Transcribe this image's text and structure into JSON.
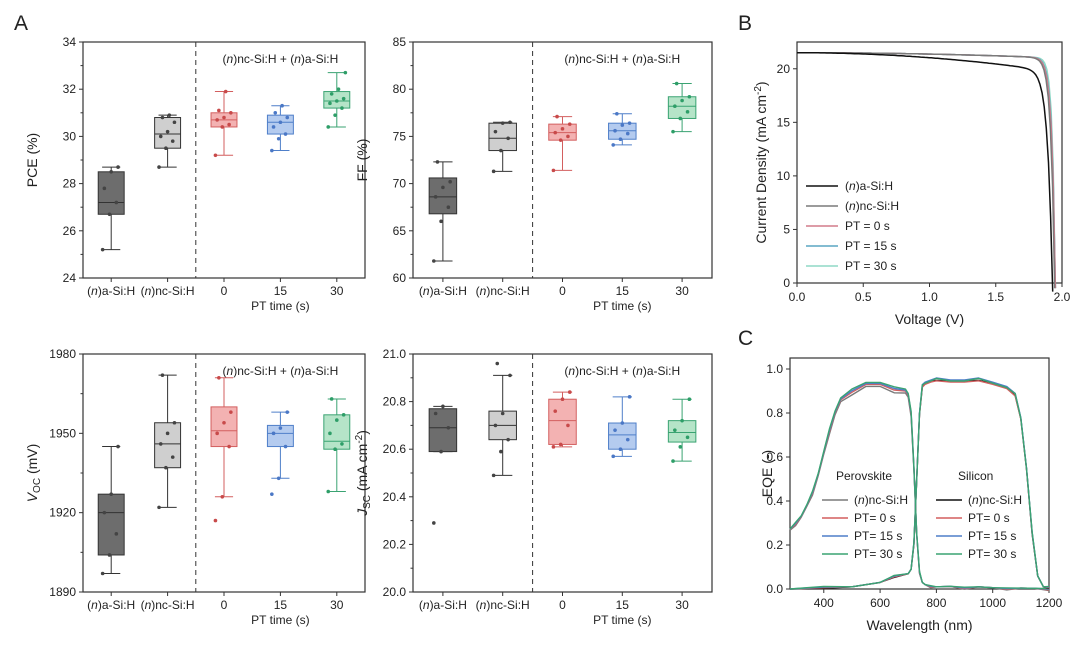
{
  "colors": {
    "a": "#6d6d6d",
    "nc": "#cfcfcf",
    "pt0": "#f3b2b2",
    "pt15": "#b4cbef",
    "pt30": "#b5e4c8",
    "a_dot": "#444444",
    "nc_dot": "#444444",
    "pt0_dot": "#c84a4a",
    "pt15_dot": "#4b78c6",
    "pt30_dot": "#2e9e68",
    "pt0_line": "#d35f5f",
    "pt15_line": "#4f7fc9",
    "pt30_line": "#3aa372",
    "jv_a": "#111111",
    "jv_nc": "#7a7a7a",
    "jv_pt0": "#d27c8a",
    "jv_pt15": "#5aa6c2",
    "jv_pt30": "#8fd9c6"
  },
  "labels": {
    "panel_a": "A",
    "panel_b": "B",
    "panel_c": "C",
    "annotation": "(n)nc-Si:H + (n)a-Si:H",
    "categories": [
      "(n)a-Si:H",
      "(n)nc-Si:H",
      "0",
      "15",
      "30"
    ],
    "pt_time": "PT time (s)"
  },
  "chart_data": [
    {
      "id": "pce",
      "type": "box",
      "ylabel": "PCE (%)",
      "ylim": [
        24,
        34
      ],
      "yticks": [
        "24",
        "26",
        "28",
        "30",
        "32",
        "34"
      ],
      "groups": [
        {
          "name": "(n)a-Si:H",
          "color_key": "a",
          "whisker": [
            25.2,
            28.7
          ],
          "box": [
            26.7,
            28.5
          ],
          "median": 27.2,
          "points": [
            25.2,
            26.7,
            27.2,
            27.8,
            28.5,
            28.7
          ]
        },
        {
          "name": "(n)nc-Si:H",
          "color_key": "nc",
          "whisker": [
            28.7,
            30.9
          ],
          "box": [
            29.5,
            30.8
          ],
          "median": 30.1,
          "points": [
            28.7,
            29.5,
            29.8,
            30.0,
            30.2,
            30.6,
            30.8,
            30.9
          ]
        },
        {
          "name": "0",
          "color_key": "pt0",
          "whisker": [
            29.2,
            31.9
          ],
          "box": [
            30.4,
            31.0
          ],
          "median": 30.7,
          "points": [
            29.2,
            30.4,
            30.5,
            30.7,
            30.8,
            31.0,
            31.1,
            31.9
          ]
        },
        {
          "name": "15",
          "color_key": "pt15",
          "whisker": [
            29.4,
            31.3
          ],
          "box": [
            30.1,
            30.9
          ],
          "median": 30.6,
          "points": [
            29.4,
            29.9,
            30.1,
            30.4,
            30.6,
            30.8,
            31.0,
            31.3
          ]
        },
        {
          "name": "30",
          "color_key": "pt30",
          "whisker": [
            30.4,
            32.7
          ],
          "box": [
            31.2,
            31.9
          ],
          "median": 31.5,
          "points": [
            30.4,
            30.9,
            31.2,
            31.4,
            31.5,
            31.6,
            31.8,
            32.0,
            32.7
          ]
        }
      ]
    },
    {
      "id": "ff",
      "type": "box",
      "ylabel": "FF (%)",
      "ylim": [
        60,
        85
      ],
      "yticks": [
        "60",
        "65",
        "70",
        "75",
        "80",
        "85"
      ],
      "groups": [
        {
          "name": "(n)a-Si:H",
          "color_key": "a",
          "whisker": [
            61.8,
            72.3
          ],
          "box": [
            66.8,
            70.6
          ],
          "median": 68.6,
          "points": [
            61.8,
            66.0,
            67.5,
            68.6,
            69.6,
            70.2,
            72.3
          ]
        },
        {
          "name": "(n)nc-Si:H",
          "color_key": "nc",
          "whisker": [
            71.3,
            76.5
          ],
          "box": [
            73.5,
            76.4
          ],
          "median": 74.8,
          "points": [
            71.3,
            73.5,
            74.8,
            75.5,
            76.4,
            76.5
          ]
        },
        {
          "name": "0",
          "color_key": "pt0",
          "whisker": [
            71.4,
            77.1
          ],
          "box": [
            74.6,
            76.3
          ],
          "median": 75.4,
          "points": [
            71.4,
            74.6,
            75.0,
            75.4,
            75.8,
            76.3,
            77.1
          ]
        },
        {
          "name": "15",
          "color_key": "pt15",
          "whisker": [
            74.1,
            77.4
          ],
          "box": [
            74.7,
            76.4
          ],
          "median": 75.6,
          "points": [
            74.1,
            74.7,
            75.3,
            75.6,
            76.2,
            76.4,
            77.4
          ]
        },
        {
          "name": "30",
          "color_key": "pt30",
          "whisker": [
            75.5,
            80.6
          ],
          "box": [
            76.9,
            79.2
          ],
          "median": 78.2,
          "points": [
            75.5,
            76.9,
            77.6,
            78.2,
            78.8,
            79.2,
            80.6
          ]
        }
      ]
    },
    {
      "id": "voc",
      "type": "box",
      "ylabel": "VOC (mV)",
      "ylabel_main": "V",
      "ylabel_sub": "OC",
      "ylabel_rest": " (mV)",
      "ylim": [
        1890,
        1980
      ],
      "yticks": [
        "1890",
        "1920",
        "1950",
        "1980"
      ],
      "ytick_values": [
        1890,
        1920,
        1950,
        1980
      ],
      "groups": [
        {
          "name": "(n)a-Si:H",
          "color_key": "a",
          "whisker": [
            1897,
            1945
          ],
          "box": [
            1904,
            1927
          ],
          "median": 1920,
          "points": [
            1897,
            1904,
            1912,
            1920,
            1927,
            1945
          ]
        },
        {
          "name": "(n)nc-Si:H",
          "color_key": "nc",
          "whisker": [
            1922,
            1972
          ],
          "box": [
            1937,
            1954
          ],
          "median": 1946,
          "points": [
            1922,
            1937,
            1941,
            1946,
            1950,
            1954,
            1972
          ]
        },
        {
          "name": "0",
          "color_key": "pt0",
          "whisker": [
            1926,
            1971
          ],
          "box": [
            1945,
            1960
          ],
          "median": 1951,
          "points": [
            1917,
            1926,
            1945,
            1950,
            1954,
            1958,
            1971
          ]
        },
        {
          "name": "15",
          "color_key": "pt15",
          "whisker": [
            1933,
            1958
          ],
          "box": [
            1945,
            1953
          ],
          "median": 1950,
          "points": [
            1927,
            1933,
            1945,
            1950,
            1952,
            1958
          ]
        },
        {
          "name": "30",
          "color_key": "pt30",
          "whisker": [
            1928,
            1963
          ],
          "box": [
            1944,
            1957
          ],
          "median": 1947,
          "points": [
            1928,
            1944,
            1946,
            1950,
            1955,
            1957,
            1963
          ]
        }
      ]
    },
    {
      "id": "jsc",
      "type": "box",
      "ylabel": "JSC (mA cm-2)",
      "ylabel_main": "J",
      "ylabel_sub": "SC",
      "ylabel_rest": " (mA cm",
      "ylabel_sup": "-2",
      "ylabel_end": ")",
      "ylim": [
        20.0,
        21.0
      ],
      "yticks": [
        "20.0",
        "20.2",
        "20.4",
        "20.6",
        "20.8",
        "21.0"
      ],
      "groups": [
        {
          "name": "(n)a-Si:H",
          "color_key": "a",
          "whisker": [
            20.59,
            20.78
          ],
          "box": [
            20.59,
            20.77
          ],
          "median": 20.69,
          "points": [
            20.29,
            20.59,
            20.69,
            20.75,
            20.78
          ]
        },
        {
          "name": "(n)nc-Si:H",
          "color_key": "nc",
          "whisker": [
            20.49,
            20.91
          ],
          "box": [
            20.64,
            20.76
          ],
          "median": 20.7,
          "points": [
            20.49,
            20.59,
            20.64,
            20.7,
            20.75,
            20.91,
            20.96
          ]
        },
        {
          "name": "0",
          "color_key": "pt0",
          "whisker": [
            20.61,
            20.84
          ],
          "box": [
            20.62,
            20.81
          ],
          "median": 20.72,
          "points": [
            20.61,
            20.62,
            20.7,
            20.76,
            20.81,
            20.84
          ]
        },
        {
          "name": "15",
          "color_key": "pt15",
          "whisker": [
            20.57,
            20.82
          ],
          "box": [
            20.6,
            20.71
          ],
          "median": 20.66,
          "points": [
            20.57,
            20.6,
            20.64,
            20.68,
            20.71,
            20.82
          ]
        },
        {
          "name": "30",
          "color_key": "pt30",
          "whisker": [
            20.55,
            20.81
          ],
          "box": [
            20.63,
            20.72
          ],
          "median": 20.67,
          "points": [
            20.55,
            20.61,
            20.65,
            20.68,
            20.72,
            20.81
          ]
        }
      ]
    },
    {
      "id": "jv",
      "type": "line",
      "xlabel": "Voltage (V)",
      "ylabel": "Current Density (mA cm-2)",
      "ylabel_text": "Current Density (mA cm",
      "ylabel_sup": "-2",
      "ylabel_end": ")",
      "xlim": [
        0.0,
        2.0
      ],
      "ylim": [
        0,
        22.5
      ],
      "xticks": [
        "0.0",
        "0.5",
        "1.0",
        "1.5",
        "2.0"
      ],
      "yticks": [
        "0",
        "5",
        "10",
        "15",
        "20"
      ],
      "legend_position": "lower-left",
      "series": [
        {
          "name": "(n)a-Si:H",
          "color_key": "jv_a",
          "jsc": 21.5,
          "voc": 1.93,
          "ff": 0.69
        },
        {
          "name": "(n)nc-Si:H",
          "color_key": "jv_nc",
          "jsc": 21.5,
          "voc": 1.945,
          "ff": 0.75
        },
        {
          "name": "PT = 0 s",
          "color_key": "jv_pt0",
          "jsc": 21.5,
          "voc": 1.95,
          "ff": 0.76
        },
        {
          "name": "PT = 15 s",
          "color_key": "jv_pt15",
          "jsc": 21.5,
          "voc": 1.95,
          "ff": 0.77
        },
        {
          "name": "PT = 30 s",
          "color_key": "jv_pt30",
          "jsc": 21.5,
          "voc": 1.95,
          "ff": 0.8
        }
      ]
    },
    {
      "id": "eqe",
      "type": "line",
      "xlabel": "Wavelength (nm)",
      "ylabel": "EQE (-)",
      "xlim": [
        280,
        1200
      ],
      "ylim": [
        0,
        1.05
      ],
      "xticks": [
        "400",
        "600",
        "800",
        "1000",
        "1200"
      ],
      "xtick_values": [
        400,
        600,
        800,
        1000,
        1200
      ],
      "yticks": [
        "0.0",
        "0.2",
        "0.4",
        "0.6",
        "0.8",
        "1.0"
      ],
      "legend_position": "lower",
      "legend_titles": [
        "Perovskite",
        "Silicon"
      ],
      "perovskite": {
        "x": [
          280,
          300,
          320,
          340,
          360,
          380,
          400,
          420,
          440,
          460,
          500,
          550,
          600,
          650,
          690,
          700,
          710,
          720,
          730,
          740,
          750,
          760,
          780,
          800,
          850,
          900,
          950,
          1000,
          1050,
          1100,
          1150,
          1200
        ],
        "y": [
          0.27,
          0.3,
          0.33,
          0.38,
          0.44,
          0.52,
          0.62,
          0.72,
          0.8,
          0.86,
          0.9,
          0.93,
          0.93,
          0.91,
          0.9,
          0.88,
          0.8,
          0.55,
          0.25,
          0.08,
          0.03,
          0.02,
          0.015,
          0.01,
          0.012,
          0.008,
          0.01,
          0.006,
          0.005,
          0.004,
          0.003,
          0.002
        ]
      },
      "silicon": {
        "x": [
          280,
          400,
          500,
          600,
          650,
          700,
          710,
          720,
          730,
          740,
          750,
          760,
          780,
          800,
          850,
          900,
          950,
          1000,
          1050,
          1080,
          1100,
          1120,
          1140,
          1160,
          1180,
          1200
        ],
        "y": [
          0.0,
          0.0,
          0.01,
          0.03,
          0.05,
          0.07,
          0.09,
          0.2,
          0.5,
          0.8,
          0.92,
          0.94,
          0.95,
          0.95,
          0.95,
          0.95,
          0.95,
          0.94,
          0.92,
          0.88,
          0.78,
          0.55,
          0.25,
          0.06,
          0.01,
          0.0
        ]
      },
      "series": [
        {
          "name": "(n)nc-Si:H",
          "group": "Perovskite",
          "color_key": "jv_nc",
          "scale": 0.99
        },
        {
          "name": "PT=  0 s",
          "group": "Perovskite",
          "color_key": "pt0_line",
          "scale": 1.0
        },
        {
          "name": "PT= 15 s",
          "group": "Perovskite",
          "color_key": "pt15_line",
          "scale": 1.005
        },
        {
          "name": "PT= 30 s",
          "group": "Perovskite",
          "color_key": "pt30_line",
          "scale": 1.01
        },
        {
          "name": "(n)nc-Si:H",
          "group": "Silicon",
          "color_key": "jv_a",
          "scale": 0.995
        },
        {
          "name": "PT=  0 s",
          "group": "Silicon",
          "color_key": "pt0_line",
          "scale": 0.99
        },
        {
          "name": "PT= 15 s",
          "group": "Silicon",
          "color_key": "pt15_line",
          "scale": 1.0
        },
        {
          "name": "PT= 30 s",
          "group": "Silicon",
          "color_key": "pt30_line",
          "scale": 0.995
        }
      ]
    }
  ]
}
